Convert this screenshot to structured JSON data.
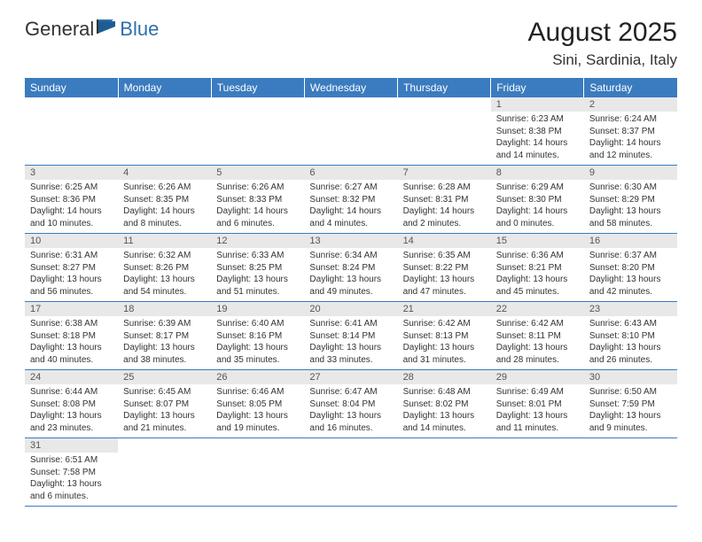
{
  "logo": {
    "text1": "General",
    "text2": "Blue"
  },
  "title": "August 2025",
  "location": "Sini, Sardinia, Italy",
  "colors": {
    "header_bg": "#3b7bbf",
    "header_text": "#ffffff",
    "daynum_bg": "#e8e8e8",
    "row_border": "#3b7bbf",
    "logo_blue": "#2f6fab",
    "body_text": "#333333",
    "background": "#ffffff"
  },
  "weekdays": [
    "Sunday",
    "Monday",
    "Tuesday",
    "Wednesday",
    "Thursday",
    "Friday",
    "Saturday"
  ],
  "weeks": [
    [
      {
        "empty": true
      },
      {
        "empty": true
      },
      {
        "empty": true
      },
      {
        "empty": true
      },
      {
        "empty": true
      },
      {
        "num": "1",
        "sunrise": "Sunrise: 6:23 AM",
        "sunset": "Sunset: 8:38 PM",
        "daylight": "Daylight: 14 hours and 14 minutes."
      },
      {
        "num": "2",
        "sunrise": "Sunrise: 6:24 AM",
        "sunset": "Sunset: 8:37 PM",
        "daylight": "Daylight: 14 hours and 12 minutes."
      }
    ],
    [
      {
        "num": "3",
        "sunrise": "Sunrise: 6:25 AM",
        "sunset": "Sunset: 8:36 PM",
        "daylight": "Daylight: 14 hours and 10 minutes."
      },
      {
        "num": "4",
        "sunrise": "Sunrise: 6:26 AM",
        "sunset": "Sunset: 8:35 PM",
        "daylight": "Daylight: 14 hours and 8 minutes."
      },
      {
        "num": "5",
        "sunrise": "Sunrise: 6:26 AM",
        "sunset": "Sunset: 8:33 PM",
        "daylight": "Daylight: 14 hours and 6 minutes."
      },
      {
        "num": "6",
        "sunrise": "Sunrise: 6:27 AM",
        "sunset": "Sunset: 8:32 PM",
        "daylight": "Daylight: 14 hours and 4 minutes."
      },
      {
        "num": "7",
        "sunrise": "Sunrise: 6:28 AM",
        "sunset": "Sunset: 8:31 PM",
        "daylight": "Daylight: 14 hours and 2 minutes."
      },
      {
        "num": "8",
        "sunrise": "Sunrise: 6:29 AM",
        "sunset": "Sunset: 8:30 PM",
        "daylight": "Daylight: 14 hours and 0 minutes."
      },
      {
        "num": "9",
        "sunrise": "Sunrise: 6:30 AM",
        "sunset": "Sunset: 8:29 PM",
        "daylight": "Daylight: 13 hours and 58 minutes."
      }
    ],
    [
      {
        "num": "10",
        "sunrise": "Sunrise: 6:31 AM",
        "sunset": "Sunset: 8:27 PM",
        "daylight": "Daylight: 13 hours and 56 minutes."
      },
      {
        "num": "11",
        "sunrise": "Sunrise: 6:32 AM",
        "sunset": "Sunset: 8:26 PM",
        "daylight": "Daylight: 13 hours and 54 minutes."
      },
      {
        "num": "12",
        "sunrise": "Sunrise: 6:33 AM",
        "sunset": "Sunset: 8:25 PM",
        "daylight": "Daylight: 13 hours and 51 minutes."
      },
      {
        "num": "13",
        "sunrise": "Sunrise: 6:34 AM",
        "sunset": "Sunset: 8:24 PM",
        "daylight": "Daylight: 13 hours and 49 minutes."
      },
      {
        "num": "14",
        "sunrise": "Sunrise: 6:35 AM",
        "sunset": "Sunset: 8:22 PM",
        "daylight": "Daylight: 13 hours and 47 minutes."
      },
      {
        "num": "15",
        "sunrise": "Sunrise: 6:36 AM",
        "sunset": "Sunset: 8:21 PM",
        "daylight": "Daylight: 13 hours and 45 minutes."
      },
      {
        "num": "16",
        "sunrise": "Sunrise: 6:37 AM",
        "sunset": "Sunset: 8:20 PM",
        "daylight": "Daylight: 13 hours and 42 minutes."
      }
    ],
    [
      {
        "num": "17",
        "sunrise": "Sunrise: 6:38 AM",
        "sunset": "Sunset: 8:18 PM",
        "daylight": "Daylight: 13 hours and 40 minutes."
      },
      {
        "num": "18",
        "sunrise": "Sunrise: 6:39 AM",
        "sunset": "Sunset: 8:17 PM",
        "daylight": "Daylight: 13 hours and 38 minutes."
      },
      {
        "num": "19",
        "sunrise": "Sunrise: 6:40 AM",
        "sunset": "Sunset: 8:16 PM",
        "daylight": "Daylight: 13 hours and 35 minutes."
      },
      {
        "num": "20",
        "sunrise": "Sunrise: 6:41 AM",
        "sunset": "Sunset: 8:14 PM",
        "daylight": "Daylight: 13 hours and 33 minutes."
      },
      {
        "num": "21",
        "sunrise": "Sunrise: 6:42 AM",
        "sunset": "Sunset: 8:13 PM",
        "daylight": "Daylight: 13 hours and 31 minutes."
      },
      {
        "num": "22",
        "sunrise": "Sunrise: 6:42 AM",
        "sunset": "Sunset: 8:11 PM",
        "daylight": "Daylight: 13 hours and 28 minutes."
      },
      {
        "num": "23",
        "sunrise": "Sunrise: 6:43 AM",
        "sunset": "Sunset: 8:10 PM",
        "daylight": "Daylight: 13 hours and 26 minutes."
      }
    ],
    [
      {
        "num": "24",
        "sunrise": "Sunrise: 6:44 AM",
        "sunset": "Sunset: 8:08 PM",
        "daylight": "Daylight: 13 hours and 23 minutes."
      },
      {
        "num": "25",
        "sunrise": "Sunrise: 6:45 AM",
        "sunset": "Sunset: 8:07 PM",
        "daylight": "Daylight: 13 hours and 21 minutes."
      },
      {
        "num": "26",
        "sunrise": "Sunrise: 6:46 AM",
        "sunset": "Sunset: 8:05 PM",
        "daylight": "Daylight: 13 hours and 19 minutes."
      },
      {
        "num": "27",
        "sunrise": "Sunrise: 6:47 AM",
        "sunset": "Sunset: 8:04 PM",
        "daylight": "Daylight: 13 hours and 16 minutes."
      },
      {
        "num": "28",
        "sunrise": "Sunrise: 6:48 AM",
        "sunset": "Sunset: 8:02 PM",
        "daylight": "Daylight: 13 hours and 14 minutes."
      },
      {
        "num": "29",
        "sunrise": "Sunrise: 6:49 AM",
        "sunset": "Sunset: 8:01 PM",
        "daylight": "Daylight: 13 hours and 11 minutes."
      },
      {
        "num": "30",
        "sunrise": "Sunrise: 6:50 AM",
        "sunset": "Sunset: 7:59 PM",
        "daylight": "Daylight: 13 hours and 9 minutes."
      }
    ],
    [
      {
        "num": "31",
        "sunrise": "Sunrise: 6:51 AM",
        "sunset": "Sunset: 7:58 PM",
        "daylight": "Daylight: 13 hours and 6 minutes."
      },
      {
        "blank": true
      },
      {
        "blank": true
      },
      {
        "blank": true
      },
      {
        "blank": true
      },
      {
        "blank": true
      },
      {
        "blank": true
      }
    ]
  ]
}
